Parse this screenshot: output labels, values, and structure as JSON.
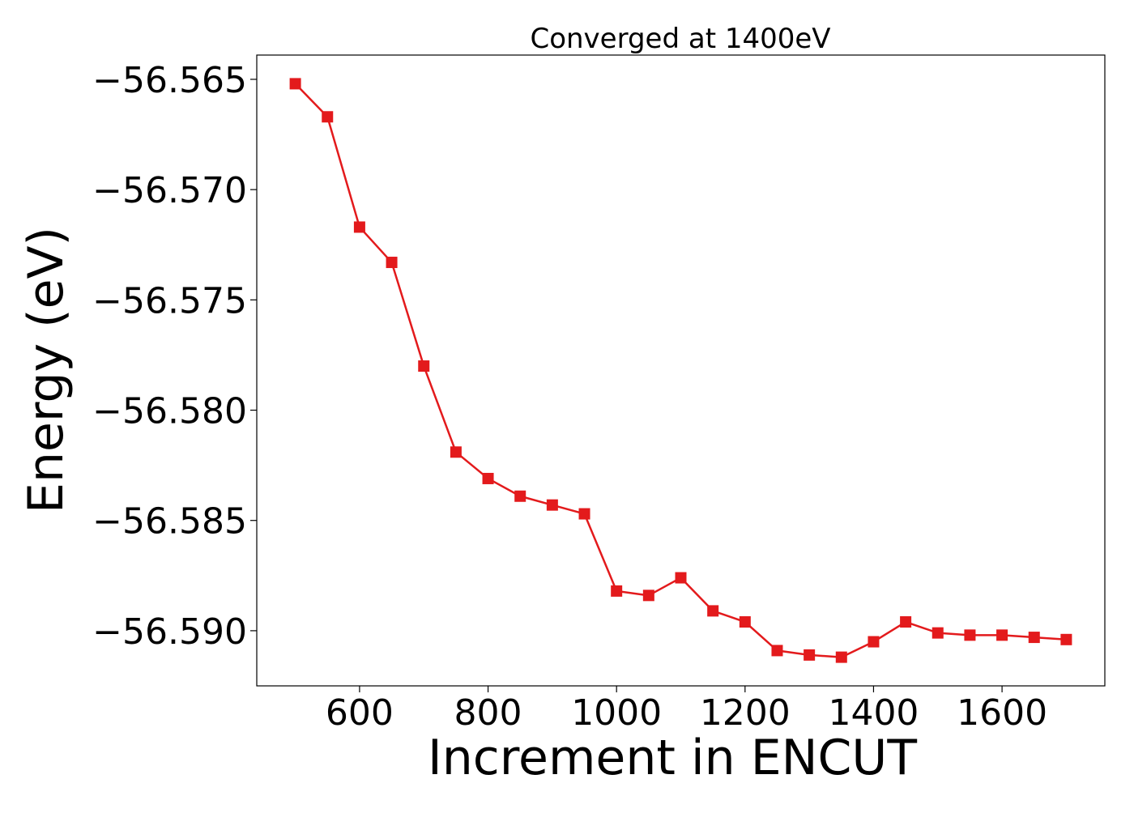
{
  "chart_data": {
    "type": "line",
    "title": "Converged at 1400eV",
    "xlabel": "Increment in ENCUT",
    "ylabel": "Energy (eV)",
    "x": [
      500,
      550,
      600,
      650,
      700,
      750,
      800,
      850,
      900,
      950,
      1000,
      1050,
      1100,
      1150,
      1200,
      1250,
      1300,
      1350,
      1400,
      1450,
      1500,
      1550,
      1600,
      1650,
      1700
    ],
    "series": [
      {
        "values": [
          -56.5652,
          -56.5667,
          -56.5717,
          -56.5733,
          -56.578,
          -56.5819,
          -56.5831,
          -56.5839,
          -56.5843,
          -56.5847,
          -56.5882,
          -56.5884,
          -56.5876,
          -56.5891,
          -56.5896,
          -56.5909,
          -56.5911,
          -56.5912,
          -56.5905,
          -56.5896,
          -56.5901,
          -56.5902,
          -56.5902,
          -56.5903,
          -56.5904
        ],
        "color": "#e31a1c",
        "marker": "square"
      }
    ],
    "xlim": [
      440,
      1760
    ],
    "ylim": [
      -56.5925,
      -56.5639
    ],
    "xticks": [
      600,
      800,
      1000,
      1200,
      1400,
      1600
    ],
    "yticks": [
      -56.565,
      -56.57,
      -56.575,
      -56.58,
      -56.585,
      -56.59
    ],
    "ytick_labels": [
      "−56.565",
      "−56.570",
      "−56.575",
      "−56.580",
      "−56.585",
      "−56.590"
    ],
    "grid": false,
    "legend": "none"
  }
}
